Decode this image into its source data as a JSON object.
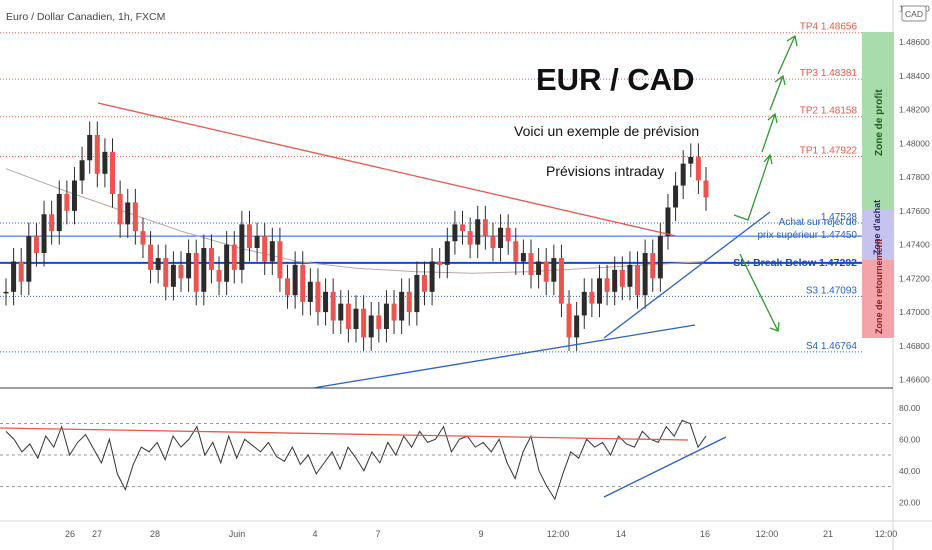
{
  "header": {
    "symbol_title": "Euro / Dollar Canadien, 1h, FXCM",
    "currency_badge": "CAD"
  },
  "annotations": {
    "big_title": "EUR / CAD",
    "subtitle": "Voici un exemple de prévision",
    "subtitle2": "Prévisions intraday",
    "buy_label_1": "Achat sur rejet de",
    "buy_label_2": "prix supérieur 1.47450",
    "sl_label": "SL: Break Below 1.47292"
  },
  "zones": {
    "profit": "Zone de profit",
    "buy": "Zone d'achat",
    "reversal": "Zone de retournement"
  },
  "colors": {
    "bull": "#26a69a",
    "bear": "#ef5350",
    "candle_body": "#2b2b2b",
    "profit_zone": "#a9dcad",
    "buy_zone": "#c7c3ef",
    "reversal_zone": "#f4a3a8",
    "arrow": "#2e9b2e",
    "trend_red": "#e8594a",
    "trend_blue": "#2962c8"
  },
  "chart_data": [
    {
      "type": "line",
      "title": "EUR / CAD",
      "y_axis_ticks": [
        "1.48800",
        "1.48600",
        "1.48400",
        "1.48200",
        "1.48000",
        "1.47800",
        "1.47600",
        "1.47400",
        "1.47200",
        "1.47000",
        "1.46800",
        "1.46600"
      ],
      "x_axis_ticks": [
        "26",
        "27",
        "28",
        "Juin",
        "4",
        "7",
        "9",
        "12:00",
        "14",
        "16",
        "12:00",
        "21",
        "12:00"
      ],
      "ylim": [
        1.4655,
        1.4885
      ],
      "levels": [
        {
          "label": "TP4 1.48656",
          "value": 1.48656,
          "color": "#e8594a"
        },
        {
          "label": "TP3 1.48381",
          "value": 1.48381,
          "color": "#e8594a"
        },
        {
          "label": "TP2 1.48158",
          "value": 1.48158,
          "color": "#e8594a"
        },
        {
          "label": "TP1 1.47922",
          "value": 1.47922,
          "color": "#e8594a"
        },
        {
          "label": "1.47528",
          "value": 1.47528,
          "color": "#2962c8"
        },
        {
          "label": "1.47450",
          "value": 1.4745,
          "color": "#2962c8"
        },
        {
          "label": "1.47292",
          "value": 1.47292,
          "color": "#1a46c8"
        },
        {
          "label": "S3 1.47093",
          "value": 1.47093,
          "color": "#2962c8"
        },
        {
          "label": "S4 1.46764",
          "value": 1.46764,
          "color": "#2962c8"
        }
      ],
      "price_path": [
        1.4712,
        1.473,
        1.4718,
        1.4745,
        1.4735,
        1.4758,
        1.4748,
        1.477,
        1.476,
        1.4778,
        1.479,
        1.4805,
        1.4782,
        1.4795,
        1.477,
        1.4752,
        1.4765,
        1.4748,
        1.474,
        1.4725,
        1.4732,
        1.4715,
        1.4728,
        1.472,
        1.4735,
        1.4712,
        1.4738,
        1.4725,
        1.4718,
        1.474,
        1.4725,
        1.4752,
        1.4738,
        1.4745,
        1.473,
        1.4742,
        1.472,
        1.471,
        1.4728,
        1.4706,
        1.4718,
        1.47,
        1.4712,
        1.4695,
        1.4705,
        1.469,
        1.4702,
        1.4685,
        1.4698,
        1.469,
        1.4705,
        1.4695,
        1.4712,
        1.47,
        1.4722,
        1.4712,
        1.473,
        1.4728,
        1.4742,
        1.4752,
        1.4748,
        1.474,
        1.4755,
        1.4745,
        1.4738,
        1.475,
        1.4742,
        1.473,
        1.4735,
        1.4722,
        1.473,
        1.4718,
        1.4732,
        1.4705,
        1.4685,
        1.4698,
        1.4712,
        1.4705,
        1.472,
        1.4712,
        1.4725,
        1.4715,
        1.4728,
        1.471,
        1.4735,
        1.472,
        1.4745,
        1.4762,
        1.4775,
        1.4788,
        1.4792,
        1.4778,
        1.4768
      ],
      "moving_average": {
        "color": "#b9a8a8",
        "values": [
          1.4785,
          1.4772,
          1.476,
          1.4748,
          1.4738,
          1.473,
          1.4726,
          1.4724,
          1.4723,
          1.4724,
          1.4726,
          1.4728,
          1.473
        ]
      }
    },
    {
      "type": "line",
      "title": "RSI",
      "y_axis_ticks": [
        "80.00",
        "60.00",
        "40.00",
        "20.00"
      ],
      "ylim": [
        10,
        90
      ],
      "reference_lines": [
        70,
        50,
        30
      ],
      "values": [
        65,
        60,
        52,
        57,
        48,
        62,
        55,
        68,
        50,
        58,
        63,
        54,
        45,
        60,
        38,
        28,
        44,
        55,
        52,
        58,
        47,
        62,
        55,
        60,
        68,
        50,
        58,
        45,
        62,
        48,
        60,
        56,
        52,
        58,
        49,
        46,
        55,
        44,
        50,
        38,
        45,
        52,
        41,
        55,
        48,
        40,
        52,
        45,
        58,
        50,
        62,
        55,
        65,
        58,
        60,
        68,
        52,
        60,
        62,
        55,
        58,
        52,
        60,
        45,
        35,
        52,
        62,
        40,
        30,
        22,
        38,
        52,
        48,
        60,
        55,
        58,
        50,
        62,
        57,
        55,
        65,
        60,
        58,
        68,
        62,
        72,
        70,
        55,
        62
      ]
    }
  ]
}
